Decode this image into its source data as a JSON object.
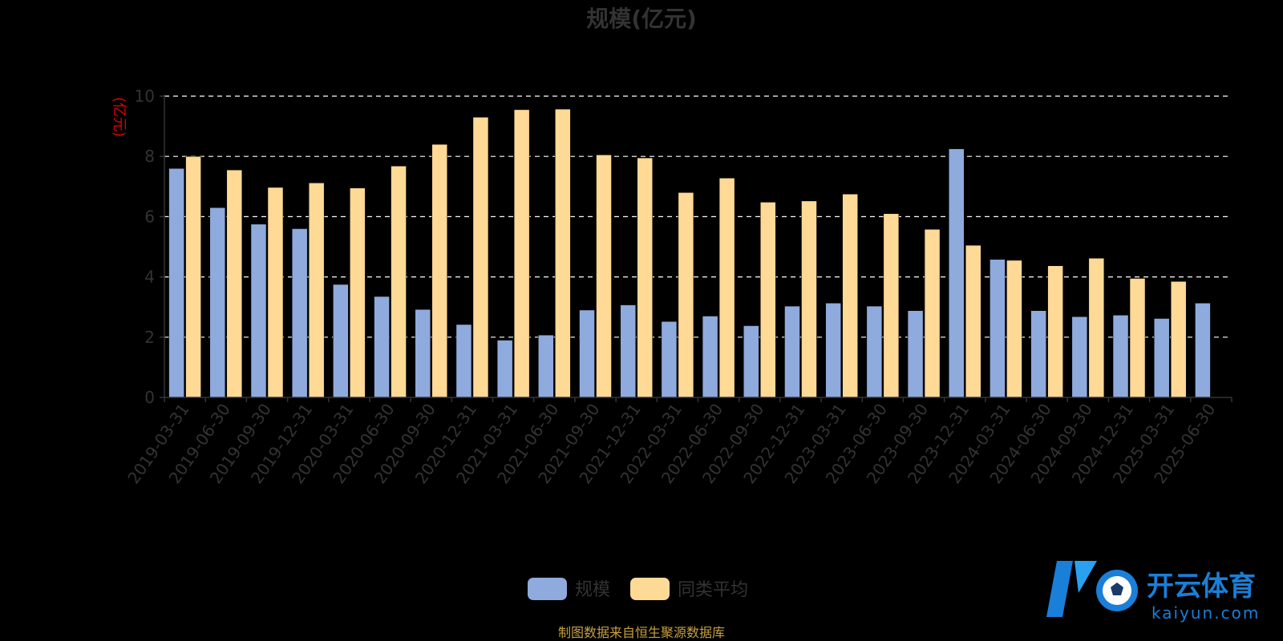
{
  "title": "规模(亿元)",
  "source_note": "制图数据来自恒生聚源数据库",
  "logo": {
    "name": "开云体育",
    "domain": "kaiyun.com"
  },
  "colors": {
    "background": "#000000",
    "text": "#333333",
    "ylabel": "#e00000",
    "grid": "#ffffff",
    "source": "#c8a040",
    "logo": "#1a7fd8"
  },
  "chart_data": {
    "type": "bar",
    "ylabel": "(亿元)",
    "xlabel": "",
    "ylim": [
      0,
      10
    ],
    "yticks": [
      0,
      2,
      4,
      6,
      8,
      10
    ],
    "grid": true,
    "legend_position": "bottom-center",
    "categories": [
      "2019-03-31",
      "2019-06-30",
      "2019-09-30",
      "2019-12-31",
      "2020-03-31",
      "2020-06-30",
      "2020-09-30",
      "2020-12-31",
      "2021-03-31",
      "2021-06-30",
      "2021-09-30",
      "2021-12-31",
      "2022-03-31",
      "2022-06-30",
      "2022-09-30",
      "2022-12-31",
      "2023-03-31",
      "2023-06-30",
      "2023-09-30",
      "2023-12-31",
      "2024-03-31",
      "2024-06-30",
      "2024-09-30",
      "2024-12-31",
      "2025-03-31",
      "2025-06-30"
    ],
    "series": [
      {
        "name": "规模",
        "color": "#8faadc",
        "values": [
          7.6,
          6.3,
          5.75,
          5.6,
          3.75,
          3.35,
          2.92,
          2.42,
          1.9,
          2.07,
          2.9,
          3.07,
          2.52,
          2.7,
          2.38,
          3.03,
          3.13,
          3.03,
          2.88,
          8.25,
          4.58,
          2.88,
          2.68,
          2.73,
          2.62,
          3.13
        ]
      },
      {
        "name": "同类平均",
        "color": "#ffd996",
        "values": [
          8.0,
          7.55,
          6.97,
          7.12,
          6.95,
          7.68,
          8.4,
          9.3,
          9.55,
          9.57,
          8.05,
          7.95,
          6.8,
          7.28,
          6.48,
          6.52,
          6.75,
          6.1,
          5.58,
          5.05,
          4.55,
          4.37,
          4.62,
          3.95,
          3.85,
          null
        ]
      }
    ]
  }
}
